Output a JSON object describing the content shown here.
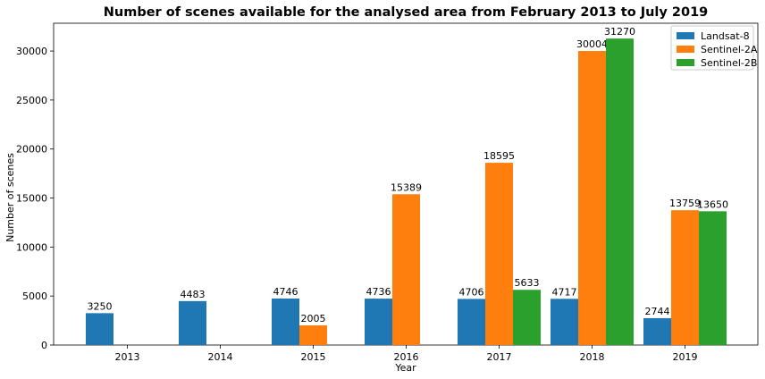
{
  "chart_data": {
    "type": "bar",
    "title": "Number of scenes available for the analysed area from February 2013 to July 2019",
    "xlabel": "Year",
    "ylabel": "Number of scenes",
    "categories": [
      "2013",
      "2014",
      "2015",
      "2016",
      "2017",
      "2018",
      "2019"
    ],
    "series": [
      {
        "name": "Landsat-8",
        "color": "#1f77b4",
        "values": [
          3250,
          4483,
          4746,
          4736,
          4706,
          4717,
          2744
        ]
      },
      {
        "name": "Sentinel-2A",
        "color": "#ff7f0e",
        "values": [
          null,
          null,
          2005,
          15389,
          18595,
          30004,
          13759
        ]
      },
      {
        "name": "Sentinel-2B",
        "color": "#2ca02c",
        "values": [
          null,
          null,
          null,
          null,
          5633,
          31270,
          13650
        ]
      }
    ],
    "ylim": [
      0,
      32834
    ],
    "yticks": [
      0,
      5000,
      10000,
      15000,
      20000,
      25000,
      30000
    ],
    "legend_position": "top-right",
    "grid": false
  }
}
